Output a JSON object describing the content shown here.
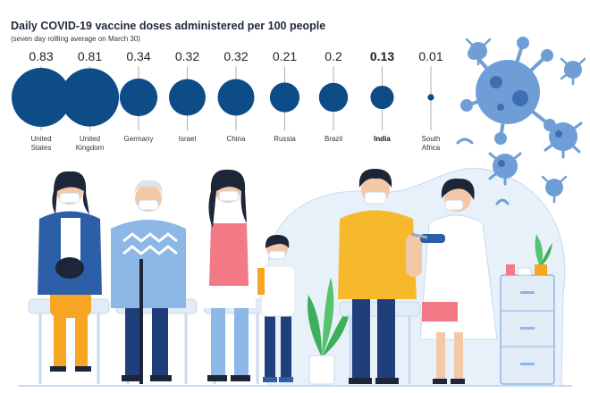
{
  "chart_data": {
    "type": "bubble",
    "title": "Daily COVID-19 vaccine doses administered per 100 people",
    "subtitle": "(seven day rollling average on March 30)",
    "categories": [
      "United\nStates",
      "United\nKingdom",
      "Germany",
      "Israel",
      "China",
      "Russia",
      "Brazil",
      "India",
      "South\nAfrica"
    ],
    "values": [
      0.83,
      0.81,
      0.34,
      0.32,
      0.32,
      0.21,
      0.2,
      0.13,
      0.01
    ],
    "value_labels": [
      "0.83",
      "0.81",
      "0.34",
      "0.32",
      "0.32",
      "0.21",
      "0.2",
      "0.13",
      "0.01"
    ],
    "highlight": "India",
    "grid": false,
    "legend": "none"
  },
  "colors": {
    "bubble": "#0e4c87",
    "title_text": "#1f2a3a"
  },
  "illustration": {
    "subject": "people seated in a row wearing face masks while a health worker vaccinates a man, with coronavirus particles",
    "icons": [
      "virus-icon",
      "syringe-icon",
      "plant-icon",
      "cabinet-icon"
    ]
  }
}
